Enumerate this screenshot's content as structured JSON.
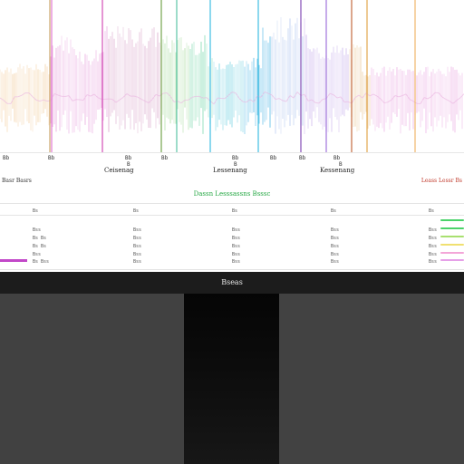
{
  "colors": {
    "accent_green": "#27a845",
    "accent_red": "#c0392b",
    "marker_palette": [
      "#c8a060",
      "#e070d0",
      "#d040b0",
      "#6a9e40",
      "#4fc0a0",
      "#2fb8e0",
      "#7a3fb0",
      "#c06030",
      "#e0a040",
      "#9a6ad8",
      "#f0b060"
    ]
  },
  "ruler": {
    "ticks": [
      "Bb",
      "Bb",
      "Bb",
      "Bb",
      "Bb",
      "Bb",
      "Bb",
      "Bb"
    ],
    "sub_ticks": [
      "B",
      "B",
      "B"
    ],
    "sections": [
      "Ceisenag",
      "Lessenang",
      "Kessenang"
    ]
  },
  "info": {
    "left": "Basr Basrs",
    "center": "Dassn Lesssassns Bsssc",
    "right": "Leass Lessr Bs"
  },
  "table": {
    "header": [
      "Bs",
      "Bs",
      "Bs",
      "Bs",
      "Bs"
    ],
    "rows": [
      [
        "Bss",
        "Bss",
        "Bss",
        "Bss",
        "Bss"
      ],
      [
        "Bs Bs",
        "Bss",
        "Bss",
        "Bss",
        "Bss"
      ],
      [
        "Bs Bs",
        "Bss",
        "Bss",
        "Bss",
        "Bss"
      ],
      [
        "Bss",
        "Bss",
        "Bss",
        "Bss",
        "Bss"
      ],
      [
        "Bs Bss",
        "Bss",
        "Bss",
        "Bss",
        "Bss"
      ]
    ],
    "meter_colors": [
      "#4bd36a",
      "#4bd36a",
      "#a8e070",
      "#f0e070",
      "#f3a6d8",
      "#e6a0e8"
    ]
  },
  "dock": {
    "title": "Bseas"
  }
}
